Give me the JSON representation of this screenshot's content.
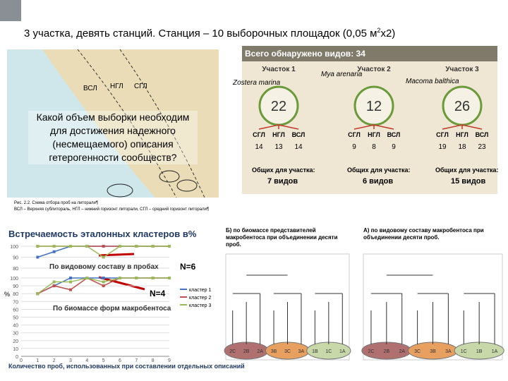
{
  "title": {
    "text": "3 участка, девять станций. Станция – 10 выборочных площадок (0,05 м",
    "sup": "2",
    "tail": "х2)"
  },
  "map": {
    "zones": [
      "ВСЛ",
      "НГЛ",
      "СГЛ"
    ],
    "question": "Какой объем выборки необходим для достижения надежного (несмещаемого) описания гетерогенности сообществ?",
    "caption": "Рис. 2.2. Схема отбора проб на литорали¶",
    "legend": "ВСЛ – Верхняя сублитораль, НГЛ – нижний горизонт литорали, СГЛ – средний горизонт литорали¶"
  },
  "species": {
    "total": "Всего обнаружено видов: 34",
    "sites": [
      {
        "name": "Участок 1",
        "species": "Zostera marina",
        "count": 22,
        "zones": [
          "СГЛ",
          "НГЛ",
          "ВСЛ"
        ],
        "zone_counts": [
          14,
          13,
          14
        ],
        "common_label": "Общих для участка:",
        "common": "7 видов"
      },
      {
        "name": "Участок 2",
        "species": "Mya arenaria",
        "count": 12,
        "zones": [
          "СГЛ",
          "НГЛ",
          "ВСЛ"
        ],
        "zone_counts": [
          9,
          8,
          9
        ],
        "common_label": "Общих для участка:",
        "common": "6 видов"
      },
      {
        "name": "Участок 3",
        "species": "Macoma balthica",
        "count": 26,
        "zones": [
          "СГЛ",
          "НГЛ",
          "ВСЛ"
        ],
        "zone_counts": [
          19,
          18,
          23
        ],
        "common_label": "Общих для участка:",
        "common": "15 видов"
      }
    ]
  },
  "frequency_chart": {
    "title": "Встречаемость эталонных кластеров в%",
    "y_label": "%",
    "x_label": "Количество проб, использованных при составлении отдельных описаний",
    "xlim": [
      0,
      9
    ],
    "xticks": [
      0,
      1,
      2,
      3,
      4,
      5,
      6,
      7,
      8,
      9
    ],
    "x": [
      1,
      2,
      3,
      4,
      5,
      6,
      7,
      8,
      9
    ],
    "panels": [
      {
        "label": "По видовому составу в пробах",
        "n": "N=6",
        "ylim": [
          80,
          100
        ],
        "yticks": [
          80,
          90,
          100
        ],
        "series": [
          {
            "name": "кластер 1",
            "color": "#4472c4",
            "values": [
              90,
              95,
              100,
              100,
              100,
              100,
              100,
              100,
              100
            ]
          },
          {
            "name": "кластер 2",
            "color": "#c0504d",
            "values": [
              100,
              100,
              100,
              100,
              100,
              100,
              100,
              100,
              100
            ]
          },
          {
            "name": "кластер 3",
            "color": "#9bbb59",
            "values": [
              100,
              100,
              100,
              100,
              90,
              100,
              100,
              100,
              100
            ]
          }
        ]
      },
      {
        "label": "По биомассе форм макробентоса",
        "n": "N=4",
        "ylim": [
          0,
          100
        ],
        "yticks": [
          0,
          10,
          20,
          30,
          40,
          50,
          60,
          70,
          80,
          90,
          100
        ],
        "series": [
          {
            "name": "кластер 1",
            "color": "#4472c4",
            "values": [
              80,
              90,
              100,
              100,
              100,
              100,
              100,
              100,
              100
            ]
          },
          {
            "name": "кластер 2",
            "color": "#c0504d",
            "values": [
              80,
              90,
              85,
              100,
              90,
              100,
              100,
              100,
              100
            ]
          },
          {
            "name": "кластер 3",
            "color": "#9bbb59",
            "values": [
              80,
              95,
              95,
              100,
              95,
              100,
              100,
              100,
              100
            ]
          }
        ]
      }
    ]
  },
  "dendrograms": [
    {
      "title": "Б) по биомассе представителей макробентоса при объединении десяти проб.",
      "leaves": [
        "2С",
        "2В",
        "2А",
        "3В",
        "3С",
        "3А",
        "1В",
        "1С",
        "1А"
      ]
    },
    {
      "title": "А) по видовому составу макробентоса при объединении десяти проб.",
      "leaves": [
        "2С",
        "2В",
        "2А",
        "3С",
        "3В",
        "3А",
        "1С",
        "1В",
        "1А"
      ]
    }
  ]
}
